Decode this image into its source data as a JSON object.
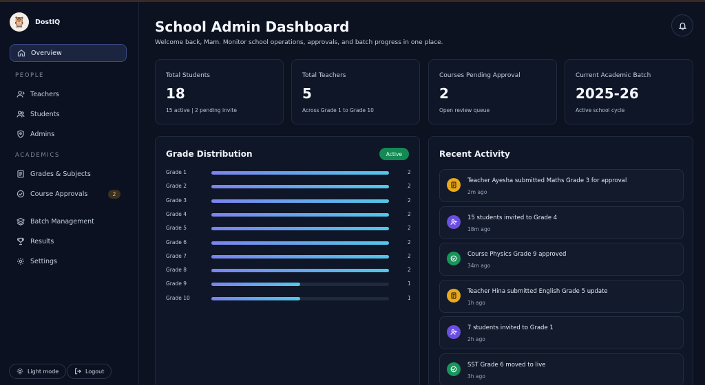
{
  "brand": {
    "name": "DostIQ",
    "logo_icon": "owl-logo"
  },
  "sidebar": {
    "overview": "Overview",
    "people_label": "PEOPLE",
    "teachers": "Teachers",
    "students": "Students",
    "admins": "Admins",
    "academics_label": "ACADEMICS",
    "grades_subjects": "Grades & Subjects",
    "course_approvals": "Course Approvals",
    "course_approvals_count": "2",
    "batch_management": "Batch Management",
    "results": "Results",
    "settings": "Settings",
    "light_mode": "Light mode",
    "logout": "Logout"
  },
  "header": {
    "title": "School Admin Dashboard",
    "subtitle": "Welcome back, Mam. Monitor school operations, approvals, and batch progress in one place."
  },
  "stats": [
    {
      "label": "Total Students",
      "value": "18",
      "note": "15 active | 2 pending invite"
    },
    {
      "label": "Total Teachers",
      "value": "5",
      "note": "Across Grade 1 to Grade 10"
    },
    {
      "label": "Courses Pending Approval",
      "value": "2",
      "note": "Open review queue"
    },
    {
      "label": "Current Academic Batch",
      "value": "2025-26",
      "note": "Active school cycle"
    }
  ],
  "grade_distribution": {
    "title": "Grade Distribution",
    "status": "Active",
    "max": 2,
    "rows": [
      {
        "label": "Grade 1",
        "value": 2
      },
      {
        "label": "Grade 2",
        "value": 2
      },
      {
        "label": "Grade 3",
        "value": 2
      },
      {
        "label": "Grade 4",
        "value": 2
      },
      {
        "label": "Grade 5",
        "value": 2
      },
      {
        "label": "Grade 6",
        "value": 2
      },
      {
        "label": "Grade 7",
        "value": 2
      },
      {
        "label": "Grade 8",
        "value": 2
      },
      {
        "label": "Grade 9",
        "value": 1
      },
      {
        "label": "Grade 10",
        "value": 1
      }
    ]
  },
  "recent_activity": {
    "title": "Recent Activity",
    "items": [
      {
        "text": "Teacher Ayesha submitted Maths Grade 3 for approval",
        "time": "2m ago",
        "icon": "document-icon",
        "color": "#e8a91c"
      },
      {
        "text": "15 students invited to Grade 4",
        "time": "18m ago",
        "icon": "user-plus-icon",
        "color": "#6a4fe0"
      },
      {
        "text": "Course Physics Grade 9 approved",
        "time": "34m ago",
        "icon": "check-circle-icon",
        "color": "#17955a"
      },
      {
        "text": "Teacher Hina submitted English Grade 5 update",
        "time": "1h ago",
        "icon": "document-icon",
        "color": "#e8a91c"
      },
      {
        "text": "7 students invited to Grade 1",
        "time": "2h ago",
        "icon": "user-plus-icon",
        "color": "#6a4fe0"
      },
      {
        "text": "SST Grade 6 moved to live",
        "time": "3h ago",
        "icon": "check-circle-icon",
        "color": "#17955a"
      }
    ]
  }
}
